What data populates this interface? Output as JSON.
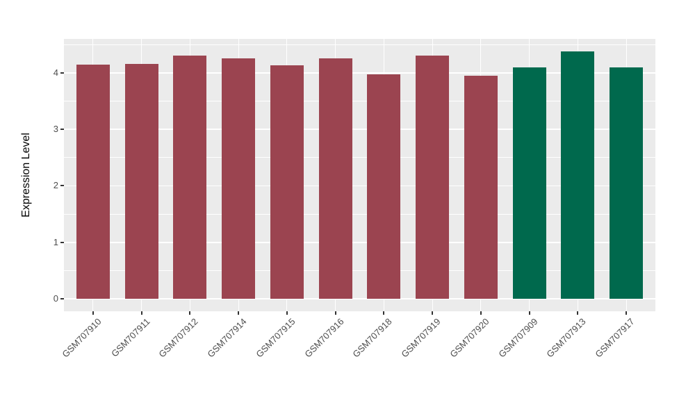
{
  "chart_data": {
    "type": "bar",
    "title": "",
    "xlabel": "",
    "ylabel": "Expression Level",
    "categories": [
      "GSM707910",
      "GSM707911",
      "GSM707912",
      "GSM707914",
      "GSM707915",
      "GSM707916",
      "GSM707918",
      "GSM707919",
      "GSM707920",
      "GSM707909",
      "GSM707913",
      "GSM707917"
    ],
    "values": [
      4.15,
      4.16,
      4.3,
      4.25,
      4.13,
      4.26,
      3.97,
      4.3,
      3.95,
      4.09,
      4.38,
      4.1
    ],
    "bar_colors": [
      "#9B4450",
      "#9B4450",
      "#9B4450",
      "#9B4450",
      "#9B4450",
      "#9B4450",
      "#9B4450",
      "#9B4450",
      "#9B4450",
      "#00694D",
      "#00694D",
      "#00694D"
    ],
    "color_groups": {
      "maroon": "#9B4450",
      "green": "#00694D"
    },
    "yticks": [
      0,
      1,
      2,
      3,
      4
    ],
    "ylim": [
      0,
      4.6
    ],
    "grid": "major and minor horizontal white gridlines plus vertical white gridlines at each category center, on grey panel",
    "legend_position": "none",
    "x_tick_label_rotation": 45,
    "panel_background": "#EBEBEB",
    "gridline_color": "#FFFFFF",
    "tick_color": "#333333",
    "tick_label_color": "#4D4D4D",
    "axis_title_color": "#000000"
  }
}
